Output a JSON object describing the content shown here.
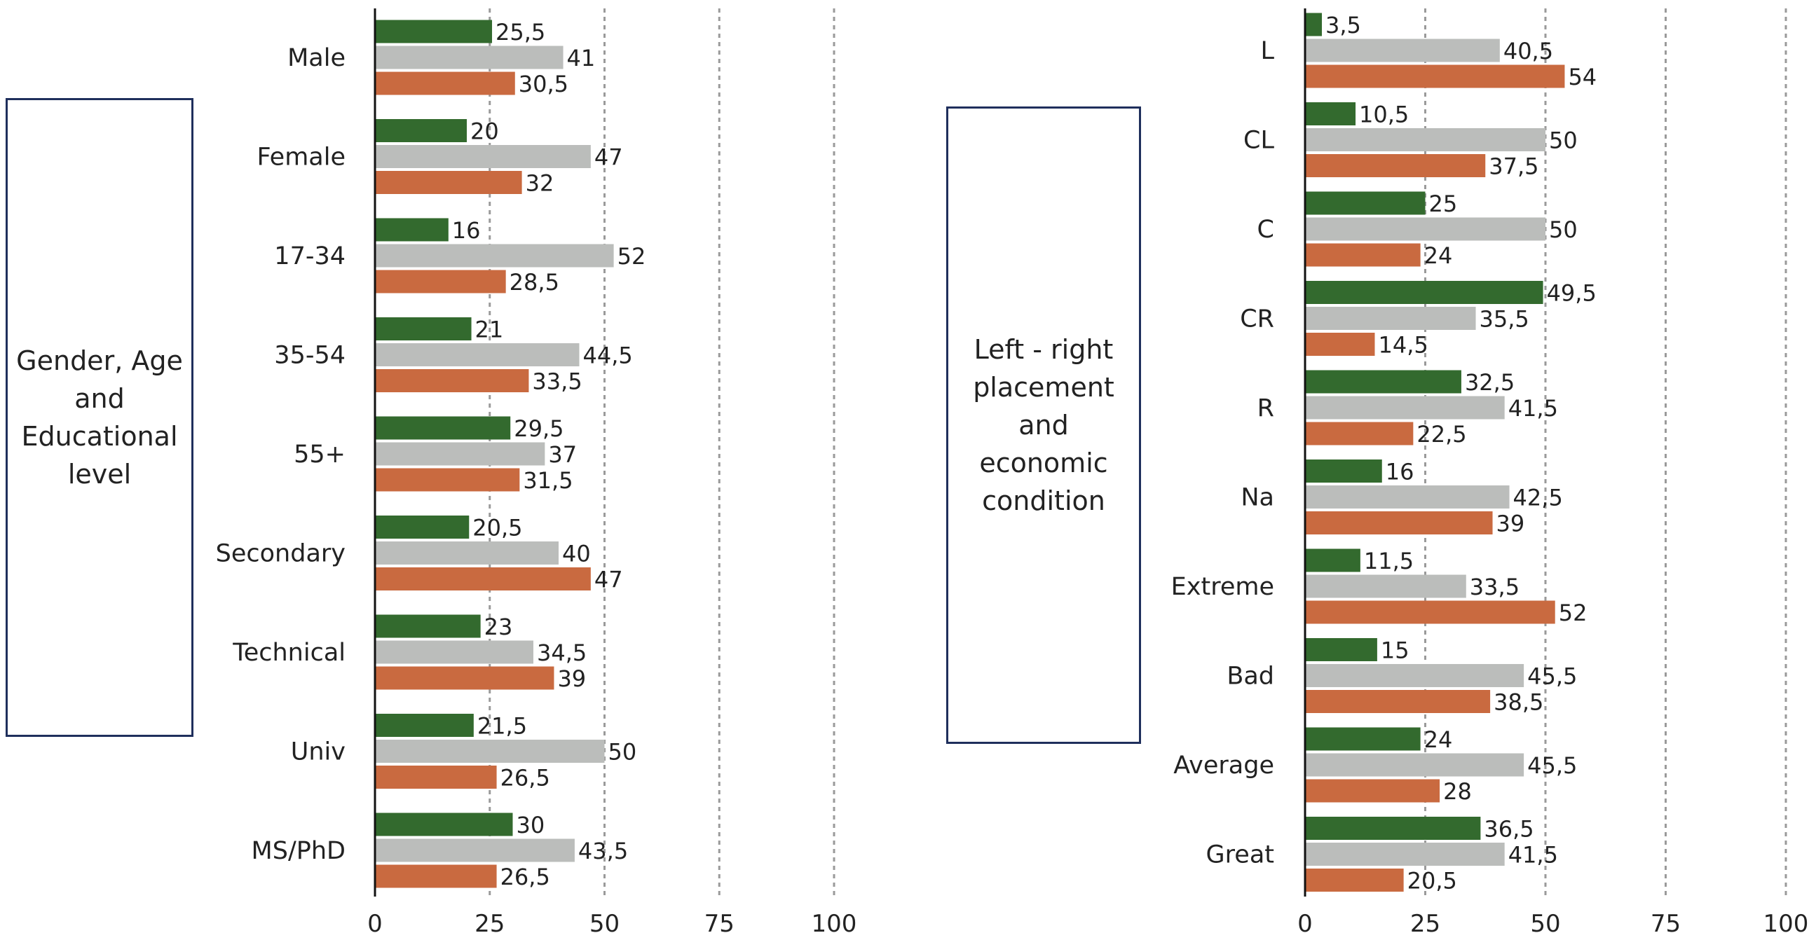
{
  "colors": {
    "series1": "#336a2e",
    "series2": "#bbbdbb",
    "series3": "#c96a40",
    "axis": "#111111",
    "grid": "#9a9a9a",
    "box_border": "#1f2f5c"
  },
  "chart_data": [
    {
      "type": "bar",
      "orientation": "horizontal",
      "group_label": "Gender, Age\nand\nEducational\nlevel",
      "categories": [
        "Male",
        "Female",
        "17-34",
        "35-54",
        "55+",
        "Secondary",
        "Technical",
        "Univ",
        "MS/PhD"
      ],
      "series": [
        {
          "values": [
            25.5,
            20,
            16,
            21,
            29.5,
            20.5,
            23,
            21.5,
            30
          ],
          "labels": [
            "25,5",
            "20",
            "16",
            "21",
            "29,5",
            "20,5",
            "23",
            "21,5",
            "30"
          ]
        },
        {
          "values": [
            41,
            47,
            52,
            44.5,
            37,
            40,
            34.5,
            50,
            43.5
          ],
          "labels": [
            "41",
            "47",
            "52",
            "44,5",
            "37",
            "40",
            "34,5",
            "50",
            "43,5"
          ]
        },
        {
          "values": [
            30.5,
            32,
            28.5,
            33.5,
            31.5,
            47,
            39,
            26.5,
            26.5
          ],
          "labels": [
            "30,5",
            "32",
            "28,5",
            "33,5",
            "31,5",
            "47",
            "39",
            "26,5",
            "26,5"
          ]
        }
      ],
      "xlim": [
        0,
        100
      ],
      "xticks": [
        "0",
        "25",
        "50",
        "75",
        "100"
      ],
      "grid": "vertical-dashed"
    },
    {
      "type": "bar",
      "orientation": "horizontal",
      "group_label": "Left - right\nplacement\nand\neconomic\ncondition",
      "categories": [
        "L",
        "CL",
        "C",
        "CR",
        "R",
        "Na",
        "Extreme",
        "Bad",
        "Average",
        "Great"
      ],
      "series": [
        {
          "values": [
            3.5,
            10.5,
            25,
            49.5,
            32.5,
            16,
            11.5,
            15,
            24,
            36.5
          ],
          "labels": [
            "3,5",
            "10,5",
            "25",
            "49,5",
            "32,5",
            "16",
            "11,5",
            "15",
            "24",
            "36,5"
          ]
        },
        {
          "values": [
            40.5,
            50,
            50,
            35.5,
            41.5,
            42.5,
            33.5,
            45.5,
            45.5,
            41.5
          ],
          "labels": [
            "40,5",
            "50",
            "50",
            "35,5",
            "41,5",
            "42,5",
            "33,5",
            "45,5",
            "45,5",
            "41,5"
          ]
        },
        {
          "values": [
            54,
            37.5,
            24,
            14.5,
            22.5,
            39,
            52,
            38.5,
            28,
            20.5
          ],
          "labels": [
            "54",
            "37,5",
            "24",
            "14,5",
            "22,5",
            "39",
            "52",
            "38,5",
            "28",
            "20,5"
          ]
        }
      ],
      "xlim": [
        0,
        100
      ],
      "xticks": [
        "0",
        "25",
        "50",
        "75",
        "100"
      ],
      "grid": "vertical-dashed"
    }
  ]
}
